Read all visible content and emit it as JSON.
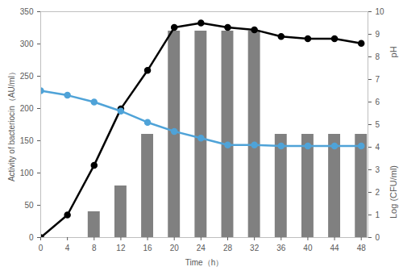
{
  "chart_data": {
    "type": "bar",
    "x": [
      0,
      4,
      8,
      12,
      16,
      20,
      24,
      28,
      32,
      36,
      40,
      44,
      48
    ],
    "xlabel": "Time（h）",
    "ylabel": "Activity of bacteriocin（AU/ml）",
    "y2_labels": [
      "pH",
      "Log (CFU/ml)"
    ],
    "xlim": [
      0,
      49
    ],
    "xticks": [
      0,
      4,
      8,
      12,
      16,
      20,
      24,
      28,
      32,
      36,
      40,
      44,
      48
    ],
    "ylim": [
      0,
      350
    ],
    "yticks": [
      0,
      50,
      100,
      150,
      200,
      250,
      300,
      350
    ],
    "y2lim": [
      0,
      10
    ],
    "y2ticks": [
      0,
      1,
      2,
      3,
      4,
      5,
      6,
      7,
      8,
      9,
      10
    ],
    "grid": false,
    "series": [
      {
        "type": "bar",
        "color": "#808080",
        "values": [
          0,
          0,
          40,
          80,
          160,
          320,
          320,
          320,
          320,
          160,
          160,
          160,
          160
        ]
      },
      {
        "type": "line",
        "axis": "y2",
        "color": "#000000",
        "marker": "circle",
        "values": [
          0,
          1.0,
          3.2,
          5.7,
          7.4,
          9.3,
          9.5,
          9.3,
          9.2,
          8.9,
          8.8,
          8.8,
          8.6
        ]
      },
      {
        "type": "line",
        "axis": "y2",
        "color": "#4fa3d8",
        "marker": "circle",
        "values": [
          6.5,
          6.3,
          6.0,
          5.6,
          5.1,
          4.7,
          4.4,
          4.1,
          4.1,
          4.05,
          4.05,
          4.05,
          4.05
        ]
      }
    ]
  }
}
